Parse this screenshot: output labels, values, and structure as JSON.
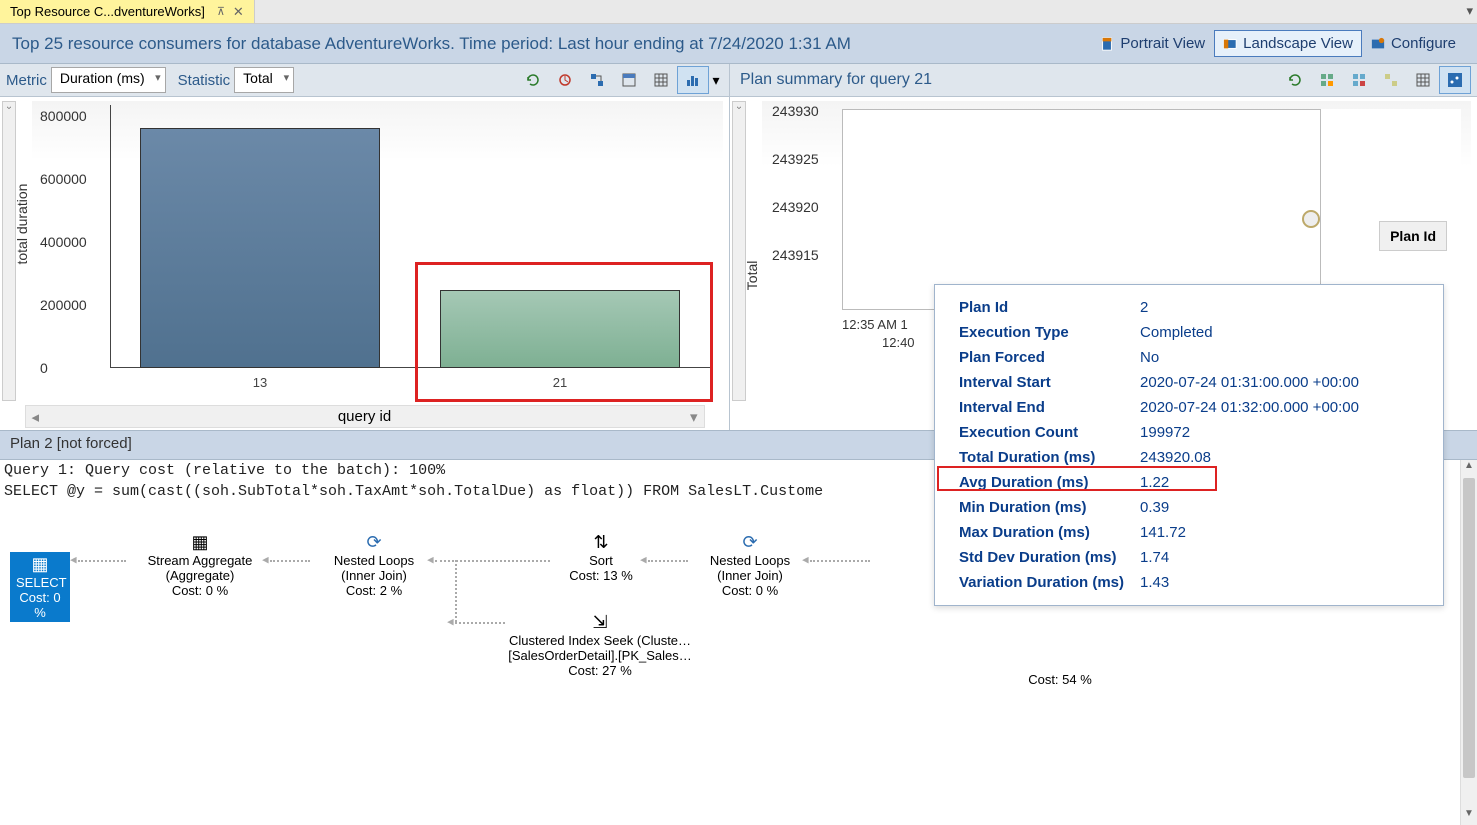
{
  "tab": {
    "title": "Top Resource C...dventureWorks]"
  },
  "header": {
    "title": "Top 25 resource consumers for database AdventureWorks. Time period: Last hour ending at 7/24/2020 1:31 AM",
    "buttons": {
      "portrait": "Portrait View",
      "landscape": "Landscape View",
      "configure": "Configure"
    }
  },
  "toolbar": {
    "metric_label": "Metric",
    "metric_value": "Duration (ms)",
    "statistic_label": "Statistic",
    "statistic_value": "Total",
    "right_title": "Plan summary for query 21"
  },
  "chart": {
    "type": "bar",
    "y_label": "total duration",
    "x_label": "query id",
    "y_ticks": [
      "0",
      "200000",
      "400000",
      "600000",
      "800000"
    ],
    "y_max": 800000,
    "bars": [
      {
        "x_label": "13",
        "value": 760000,
        "color": "blue"
      },
      {
        "x_label": "21",
        "value": 180000,
        "color": "green",
        "selected": true
      }
    ],
    "background_color": "#ffffff",
    "axis_color": "#444444",
    "bar_colors": {
      "blue": "#50718f",
      "green": "#7eb093"
    }
  },
  "plan_chart": {
    "y_label": "Total",
    "y_ticks": [
      "243915",
      "243920",
      "243925",
      "243930"
    ],
    "y_min": 243910,
    "y_max": 243932,
    "x_tick": "12:35 AM 1",
    "x_tick2": "12:40",
    "point": {
      "value": 243920
    },
    "planid_label": "Plan Id"
  },
  "tooltip": {
    "rows": [
      {
        "k": "Plan Id",
        "v": "2"
      },
      {
        "k": "Execution Type",
        "v": "Completed"
      },
      {
        "k": "Plan Forced",
        "v": "No"
      },
      {
        "k": "Interval Start",
        "v": "2020-07-24 01:31:00.000 +00:00"
      },
      {
        "k": "Interval End",
        "v": "2020-07-24 01:32:00.000 +00:00"
      },
      {
        "k": "Execution Count",
        "v": "199972"
      },
      {
        "k": "Total Duration (ms)",
        "v": "243920.08"
      },
      {
        "k": "Avg Duration (ms)",
        "v": "1.22",
        "highlight": true
      },
      {
        "k": "Min Duration (ms)",
        "v": "0.39"
      },
      {
        "k": "Max Duration (ms)",
        "v": "141.72"
      },
      {
        "k": "Std Dev Duration (ms)",
        "v": "1.74"
      },
      {
        "k": "Variation Duration (ms)",
        "v": "1.43"
      }
    ]
  },
  "plan_header": {
    "title": "Plan 2 [not forced]"
  },
  "query": {
    "line1": "Query 1: Query cost (relative to the batch): 100%",
    "line2": "SELECT @y = sum(cast((soh.SubTotal*soh.TaxAmt*soh.TotalDue) as float)) FROM SalesLT.Custome"
  },
  "execplan": {
    "nodes": {
      "select": {
        "label": "SELECT",
        "cost": "Cost: 0 %"
      },
      "stream": {
        "label": "Stream Aggregate",
        "sub": "(Aggregate)",
        "cost": "Cost: 0 %"
      },
      "nl1": {
        "label": "Nested Loops",
        "sub": "(Inner Join)",
        "cost": "Cost: 2 %"
      },
      "sort": {
        "label": "Sort",
        "cost": "Cost: 13 %"
      },
      "nl2": {
        "label": "Nested Loops",
        "sub": "(Inner Join)",
        "cost": "Cost: 0 %"
      },
      "seek": {
        "label": "Clustered Index Seek (Cluste…",
        "sub": "[SalesOrderDetail].[PK_Sales…",
        "cost": "Cost: 27 %"
      },
      "extra_cost": "Cost: 54 %"
    }
  }
}
